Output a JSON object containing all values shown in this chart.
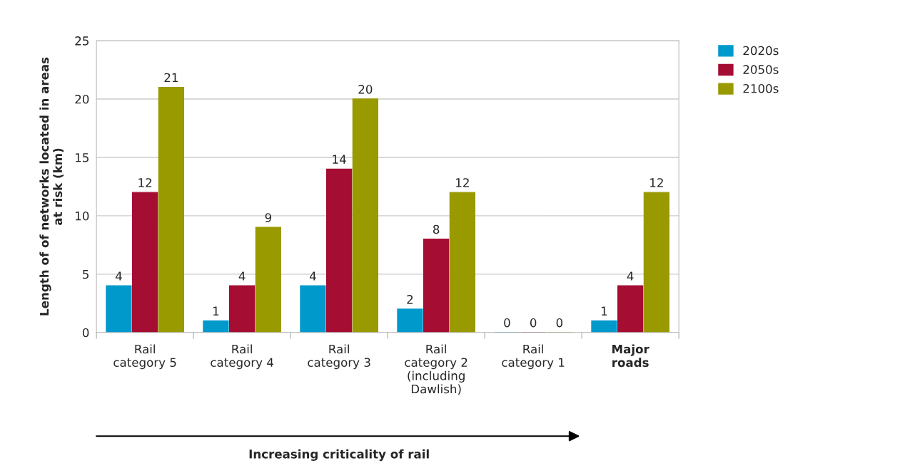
{
  "chart_data": {
    "type": "bar",
    "ylabel": "Length of of networks located in areas\nat risk (km)",
    "categories": [
      "Rail\ncategory 5",
      "Rail\ncategory 4",
      "Rail\ncategory 3",
      "Rail\ncategory 2\n(including\nDawlish)",
      "Rail\ncategory 1",
      "Major\nroads"
    ],
    "series": [
      {
        "name": "2020s",
        "color": "#0099cc",
        "values": [
          4,
          1,
          4,
          2,
          0,
          1
        ]
      },
      {
        "name": "2050s",
        "color": "#a50d32",
        "values": [
          12,
          4,
          14,
          8,
          0,
          4
        ]
      },
      {
        "name": "2100s",
        "color": "#999900",
        "values": [
          21,
          9,
          20,
          12,
          0,
          12
        ]
      }
    ],
    "ylim": [
      0,
      25
    ],
    "yticks": [
      0,
      5,
      10,
      15,
      20,
      25
    ],
    "grid": "y",
    "legend": "top right",
    "data_labels": true,
    "annotations": [
      "Increasing criticality of rail"
    ]
  }
}
